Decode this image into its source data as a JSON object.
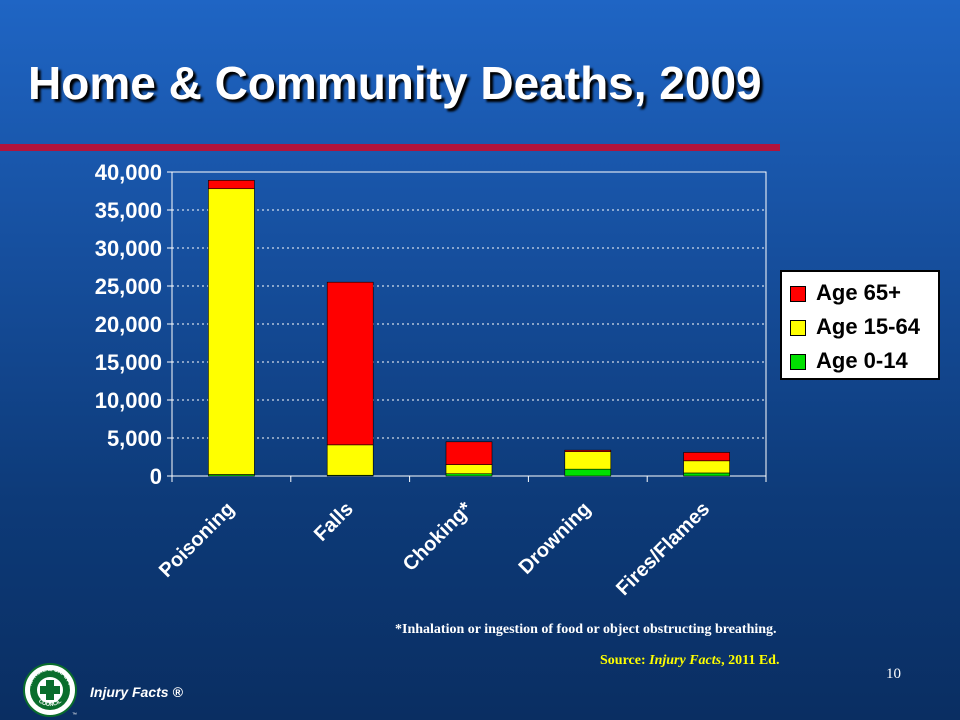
{
  "slide": {
    "title": "Home & Community Deaths, 2009",
    "footnote": "*Inhalation or ingestion of food or object obstructing breathing.",
    "source_prefix": "Source: ",
    "source_title": "Injury Facts",
    "source_suffix": ", 2011 Ed.",
    "page_number": "10",
    "brand": "Injury Facts ®",
    "logo_text_top": "NATIONAL SAFETY",
    "logo_text_bottom": "COUNCIL",
    "logo_tm": "™"
  },
  "colors": {
    "age_65_plus": "#ff0000",
    "age_15_64": "#ffff00",
    "age_0_14": "#00e000",
    "title_rule": "#b0143c"
  },
  "chart_data": {
    "type": "bar",
    "stacked": true,
    "title": "",
    "xlabel": "",
    "ylabel": "",
    "categories": [
      "Poisoning",
      "Falls",
      "Choking*",
      "Drowning",
      "Fires/Flames"
    ],
    "ylim": [
      0,
      40000
    ],
    "yticks": [
      0,
      5000,
      10000,
      15000,
      20000,
      25000,
      30000,
      35000,
      40000
    ],
    "ytick_labels": [
      "0",
      "5,000",
      "10,000",
      "15,000",
      "20,000",
      "25,000",
      "30,000",
      "35,000",
      "40,000"
    ],
    "grid": true,
    "legend_position": "right",
    "series": [
      {
        "name": "Age 0-14",
        "color": "#00e000",
        "values": [
          200,
          100,
          300,
          900,
          400
        ]
      },
      {
        "name": "Age 15-64",
        "color": "#ffff00",
        "values": [
          37600,
          4000,
          1200,
          2300,
          1600
        ]
      },
      {
        "name": "Age 65+",
        "color": "#ff0000",
        "values": [
          1100,
          21400,
          3000,
          200,
          1100
        ]
      }
    ],
    "legend_order": [
      "Age 65+",
      "Age 15-64",
      "Age 0-14"
    ]
  }
}
